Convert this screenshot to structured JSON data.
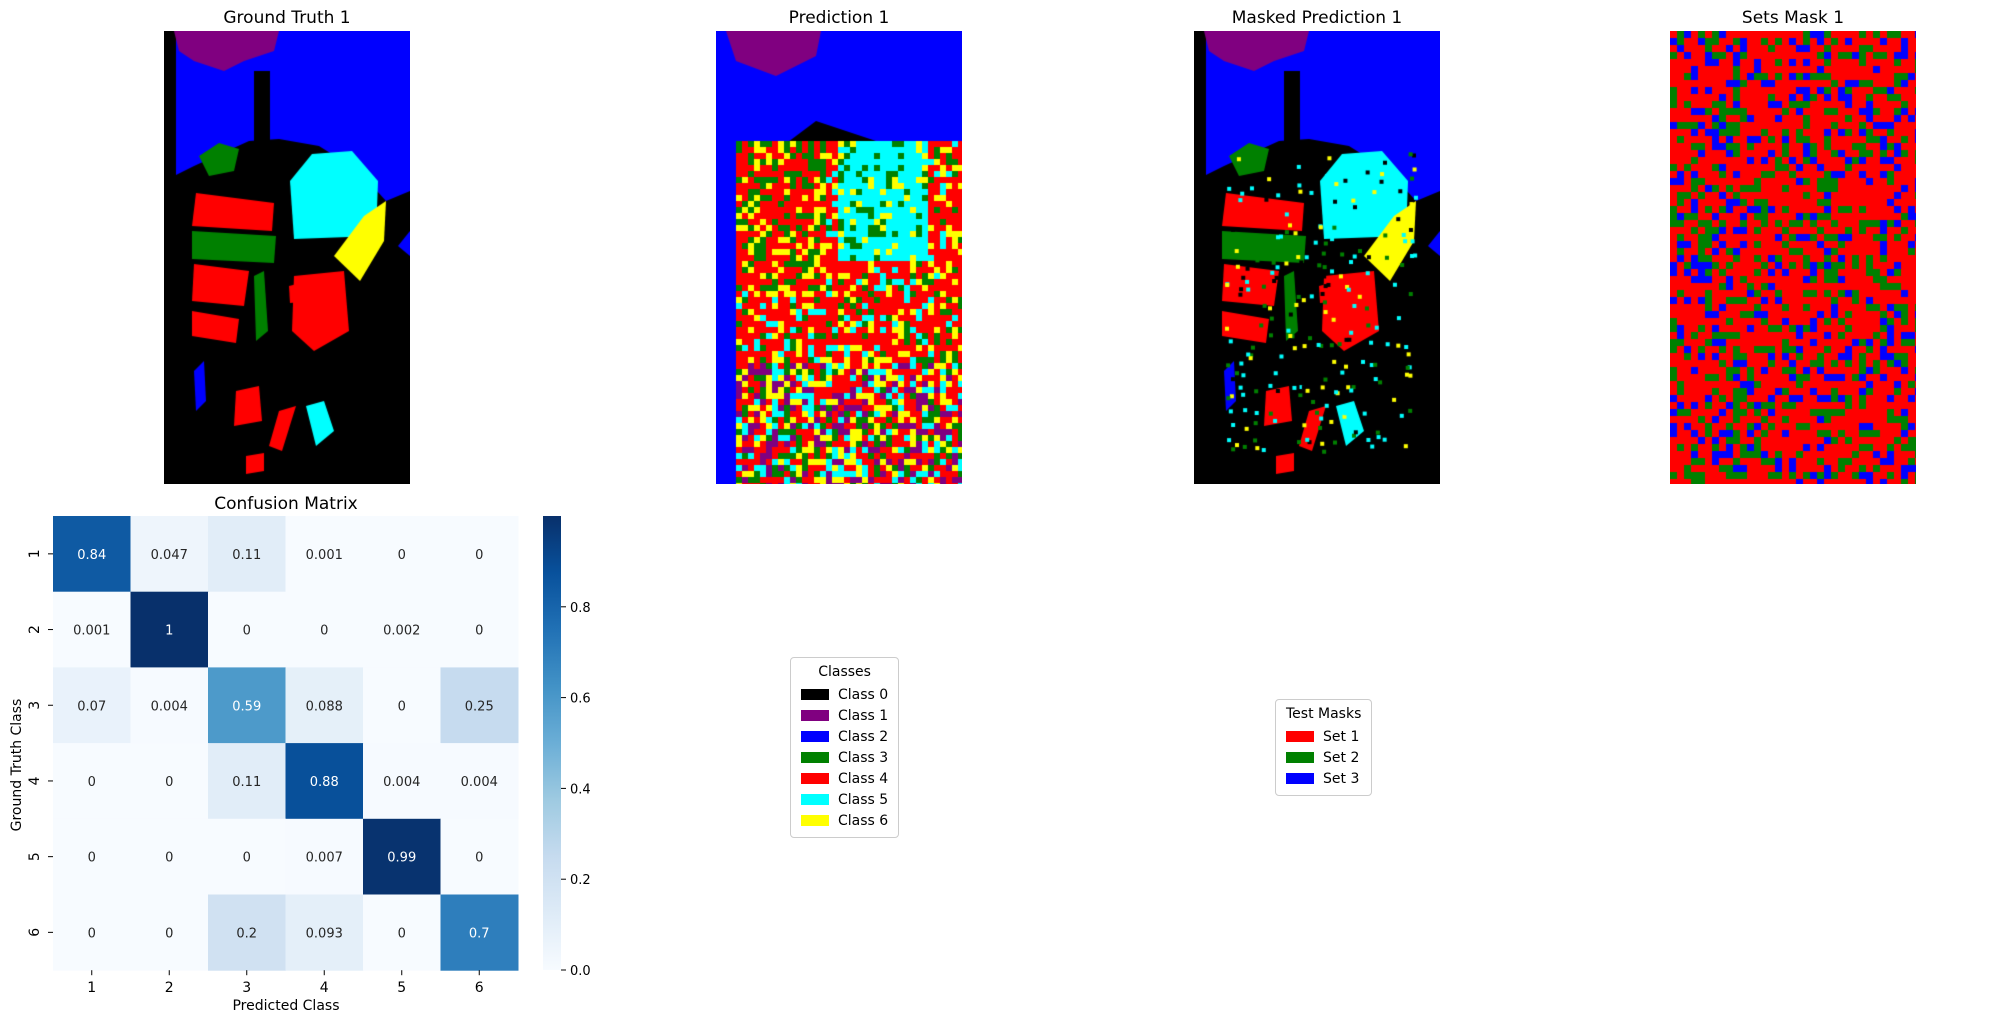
{
  "panels": {
    "gt_title": "Ground Truth 1",
    "pred_title": "Prediction 1",
    "masked_title": "Masked Prediction 1",
    "sets_title": "Sets Mask 1"
  },
  "class_colors": [
    "#000000",
    "#800080",
    "#0000ff",
    "#008000",
    "#ff0000",
    "#00ffff",
    "#ffff00"
  ],
  "set_colors": [
    "#ff0000",
    "#008000",
    "#0000ff"
  ],
  "classes_legend": {
    "title": "Classes",
    "items": [
      {
        "label": "Class 0",
        "color": "#000000"
      },
      {
        "label": "Class 1",
        "color": "#800080"
      },
      {
        "label": "Class 2",
        "color": "#0000ff"
      },
      {
        "label": "Class 3",
        "color": "#008000"
      },
      {
        "label": "Class 4",
        "color": "#ff0000"
      },
      {
        "label": "Class 5",
        "color": "#00ffff"
      },
      {
        "label": "Class 6",
        "color": "#ffff00"
      }
    ]
  },
  "sets_legend": {
    "title": "Test Masks",
    "items": [
      {
        "label": "Set 1",
        "color": "#ff0000"
      },
      {
        "label": "Set 2",
        "color": "#008000"
      },
      {
        "label": "Set 3",
        "color": "#0000ff"
      }
    ]
  },
  "chart_data": {
    "type": "heatmap",
    "title": "Confusion Matrix",
    "xlabel": "Predicted Class",
    "ylabel": "Ground Truth Class",
    "x_categories": [
      "1",
      "2",
      "3",
      "4",
      "5",
      "6"
    ],
    "y_categories": [
      "1",
      "2",
      "3",
      "4",
      "5",
      "6"
    ],
    "values": [
      [
        0.84,
        0.047,
        0.11,
        0.001,
        0,
        0
      ],
      [
        0.001,
        1,
        0,
        0,
        0.002,
        0
      ],
      [
        0.07,
        0.004,
        0.59,
        0.088,
        0,
        0.25
      ],
      [
        0,
        0,
        0.11,
        0.88,
        0.004,
        0.004
      ],
      [
        0,
        0,
        0,
        0.007,
        0.99,
        0
      ],
      [
        0,
        0,
        0.2,
        0.093,
        0,
        0.7
      ]
    ],
    "value_labels": [
      [
        "0.84",
        "0.047",
        "0.11",
        "0.001",
        "0",
        "0"
      ],
      [
        "0.001",
        "1",
        "0",
        "0",
        "0.002",
        "0"
      ],
      [
        "0.07",
        "0.004",
        "0.59",
        "0.088",
        "0",
        "0.25"
      ],
      [
        "0",
        "0",
        "0.11",
        "0.88",
        "0.004",
        "0.004"
      ],
      [
        "0",
        "0",
        "0",
        "0.007",
        "0.99",
        "0"
      ],
      [
        "0",
        "0",
        "0.2",
        "0.093",
        "0",
        "0.7"
      ]
    ],
    "colorbar": {
      "colormap": "Blues",
      "range": [
        0,
        1
      ],
      "ticks": [
        "0.0",
        "0.2",
        "0.4",
        "0.6",
        "0.8"
      ],
      "tick_values": [
        0,
        0.2,
        0.4,
        0.6,
        0.8
      ]
    }
  }
}
